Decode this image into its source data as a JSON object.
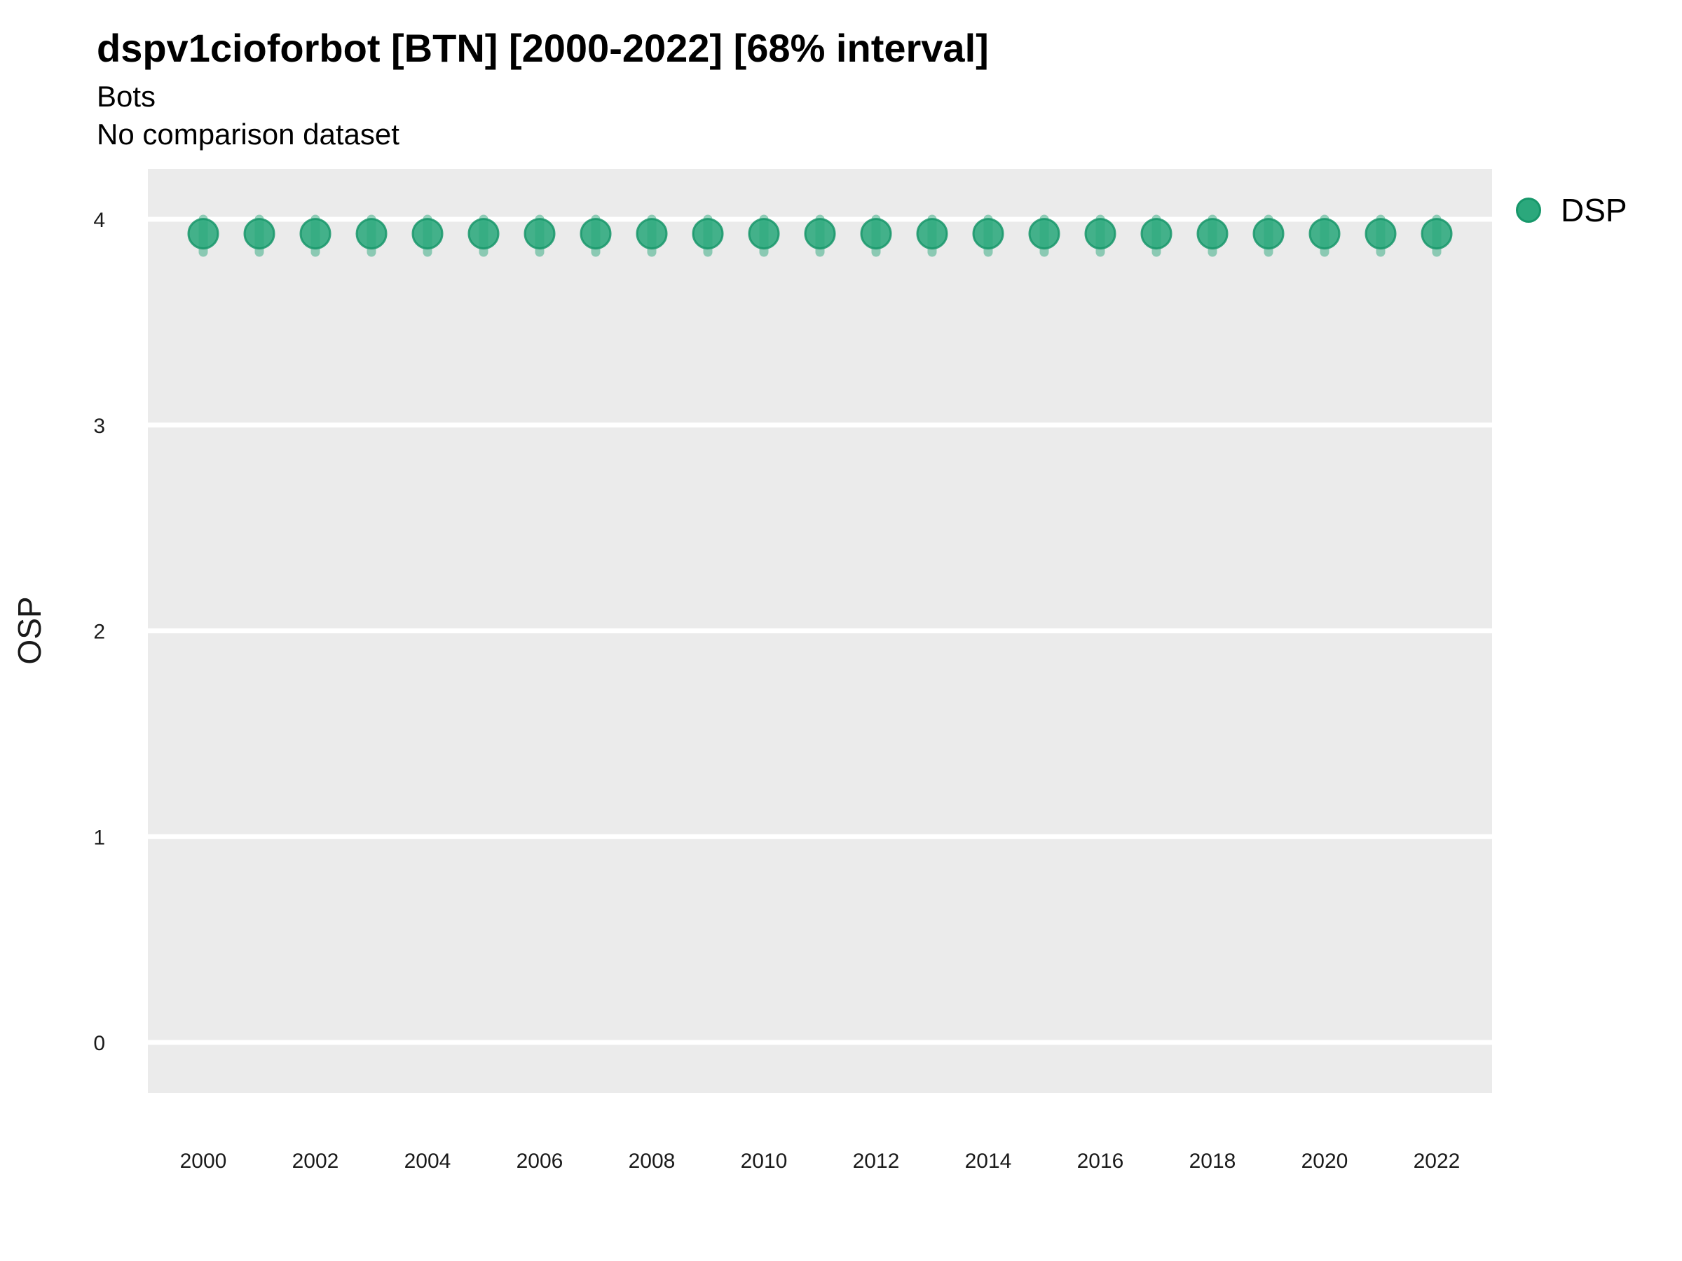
{
  "chart_data": {
    "type": "scatter",
    "title": "dspv1cioforbot [BTN] [2000-2022] [68% interval]",
    "subtitle": "Bots",
    "note": "No comparison dataset",
    "xlabel": "",
    "ylabel": "OSP",
    "interval_level": "68%",
    "grid": "horizontal-major-only, no minor, no vertical",
    "legend_position": "right",
    "panel_bg": "#EBEBEB",
    "gridline_color": "#FFFFFF",
    "ylim": [
      -0.25,
      4.25
    ],
    "xlim": [
      1999,
      2023
    ],
    "y_ticks": [
      0,
      1,
      2,
      3,
      4
    ],
    "x_ticks": [
      2000,
      2002,
      2004,
      2006,
      2008,
      2010,
      2012,
      2014,
      2016,
      2018,
      2020,
      2022
    ],
    "series": [
      {
        "name": "DSP",
        "point_color": "#2BA87C",
        "point_edge_color": "#17976A",
        "errorbar_color": "rgba(43,168,124,0.5)",
        "x": [
          2000,
          2001,
          2002,
          2003,
          2004,
          2005,
          2006,
          2007,
          2008,
          2009,
          2010,
          2011,
          2012,
          2013,
          2014,
          2015,
          2016,
          2017,
          2018,
          2019,
          2020,
          2021,
          2022
        ],
        "est": [
          3.93,
          3.93,
          3.93,
          3.93,
          3.93,
          3.93,
          3.93,
          3.93,
          3.93,
          3.93,
          3.93,
          3.93,
          3.93,
          3.93,
          3.93,
          3.93,
          3.93,
          3.93,
          3.93,
          3.93,
          3.93,
          3.93,
          3.93
        ],
        "lo": [
          3.84,
          3.84,
          3.84,
          3.84,
          3.84,
          3.84,
          3.84,
          3.84,
          3.84,
          3.84,
          3.84,
          3.84,
          3.84,
          3.84,
          3.84,
          3.84,
          3.84,
          3.84,
          3.84,
          3.84,
          3.84,
          3.84,
          3.84
        ],
        "hi": [
          4.0,
          4.0,
          4.0,
          4.0,
          4.0,
          4.0,
          4.0,
          4.0,
          4.0,
          4.0,
          4.0,
          4.0,
          4.0,
          4.0,
          4.0,
          4.0,
          4.0,
          4.0,
          4.0,
          4.0,
          4.0,
          4.0,
          4.0
        ]
      }
    ]
  }
}
